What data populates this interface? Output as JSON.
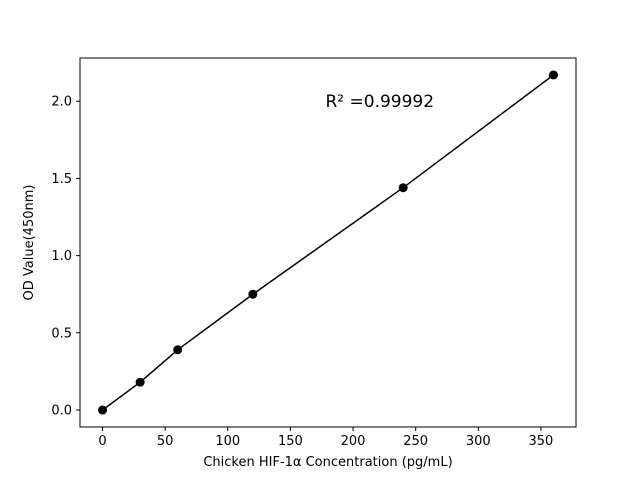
{
  "chart_data": {
    "type": "line",
    "title": "",
    "xlabel": "Chicken HIF-1α  Concentration (pg/mL)",
    "ylabel": "OD Value(450nm)",
    "x": [
      0,
      30,
      60,
      120,
      240,
      360
    ],
    "y": [
      0.0,
      0.18,
      0.39,
      0.75,
      1.44,
      2.17
    ],
    "xlim": [
      -18,
      378
    ],
    "ylim": [
      -0.11,
      2.28
    ],
    "xticks": [
      0,
      50,
      100,
      150,
      200,
      250,
      300,
      350
    ],
    "xticklabels": [
      "0",
      "50",
      "100",
      "150",
      "200",
      "250",
      "300",
      "350"
    ],
    "yticks": [
      0.0,
      0.5,
      1.0,
      1.5,
      2.0
    ],
    "yticklabels": [
      "0.0",
      "0.5",
      "1.0",
      "1.5",
      "2.0"
    ],
    "annotation": {
      "text": "R² =0.99992",
      "x": 178,
      "y": 2.0
    },
    "line_color": "#000000",
    "marker_color": "#000000",
    "frame_color": "#000000",
    "background": "#ffffff",
    "grid": false,
    "legend": null
  }
}
